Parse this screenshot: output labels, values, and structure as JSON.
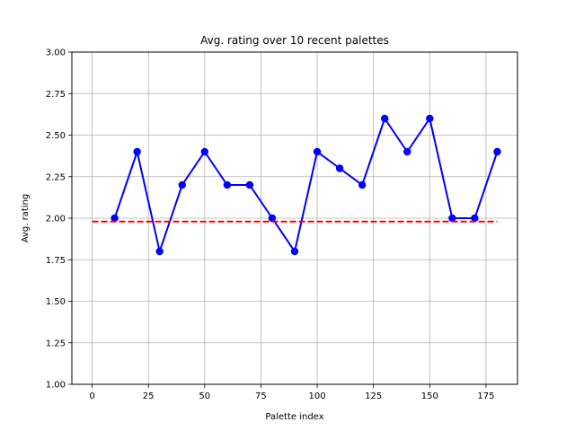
{
  "chart_data": {
    "type": "line",
    "title": "Avg. rating over 10 recent palettes",
    "xlabel": "Palette index",
    "ylabel": "Avg. rating",
    "xlim": [
      -9,
      189
    ],
    "ylim": [
      1.0,
      3.0
    ],
    "xticks": [
      0,
      25,
      50,
      75,
      100,
      125,
      150,
      175
    ],
    "yticks": [
      1.0,
      1.25,
      1.5,
      1.75,
      2.0,
      2.25,
      2.5,
      2.75,
      3.0
    ],
    "xtick_labels": [
      "0",
      "25",
      "50",
      "75",
      "100",
      "125",
      "150",
      "175"
    ],
    "ytick_labels": [
      "1.00",
      "1.25",
      "1.50",
      "1.75",
      "2.00",
      "2.25",
      "2.50",
      "2.75",
      "3.00"
    ],
    "grid": true,
    "series": [
      {
        "color": "#0000ff",
        "style": "solid-with-markers",
        "x": [
          10,
          20,
          30,
          40,
          50,
          60,
          70,
          80,
          90,
          100,
          110,
          120,
          130,
          140,
          150,
          160,
          170,
          180
        ],
        "y": [
          2.0,
          2.4,
          1.8,
          2.2,
          2.4,
          2.2,
          2.2,
          2.0,
          1.8,
          2.4,
          2.3,
          2.2,
          2.6,
          2.4,
          2.6,
          2.0,
          2.0,
          2.4
        ]
      },
      {
        "color": "#ff0000",
        "style": "dashed",
        "x": [
          0,
          180
        ],
        "y": [
          1.98,
          1.98
        ]
      }
    ]
  }
}
